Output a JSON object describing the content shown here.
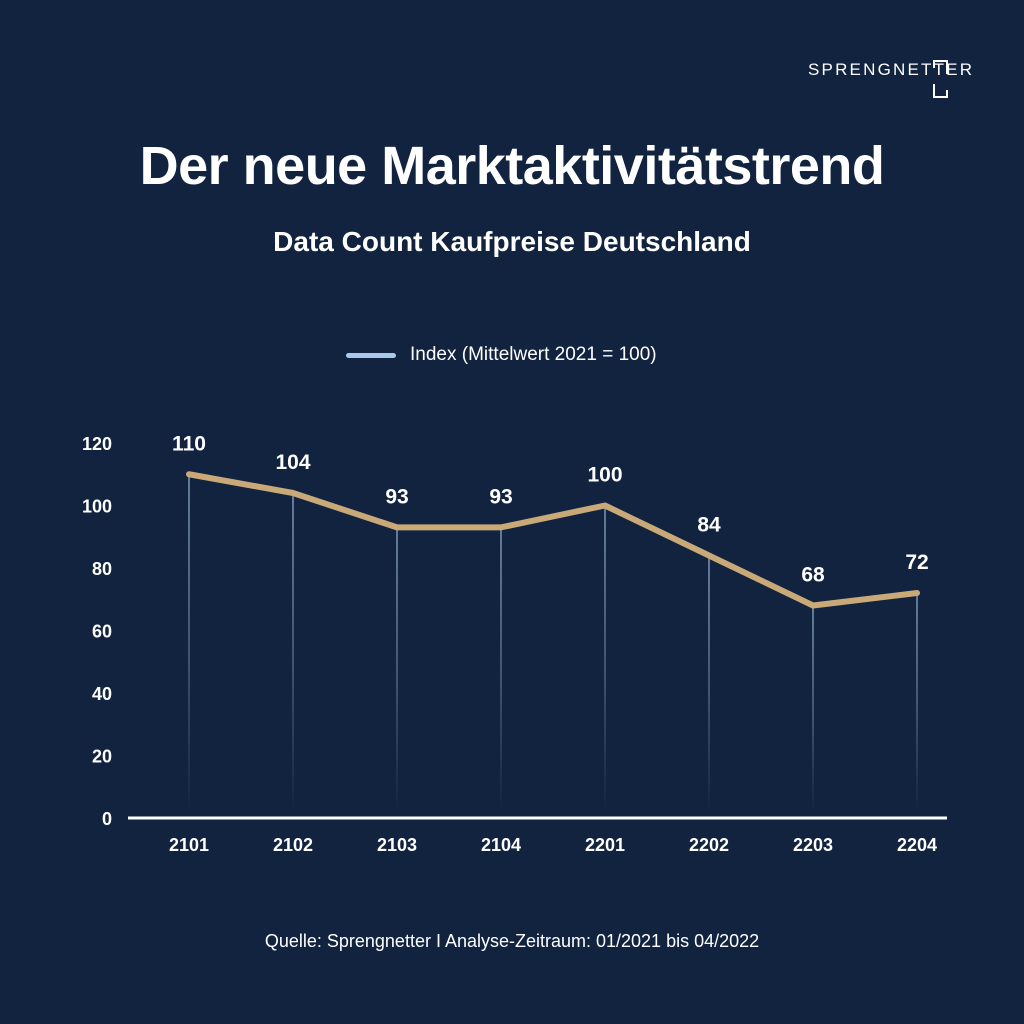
{
  "brand": {
    "name": "SPRENGNETTER"
  },
  "header": {
    "title": "Der neue Marktaktivitätstrend",
    "subtitle": "Data Count Kaufpreise Deutschland"
  },
  "footer": {
    "source": "Quelle: Sprengnetter I Analyse-Zeitraum: 01/2021 bis 04/2022"
  },
  "colors": {
    "background": "#11233f",
    "line": "#c9a978",
    "legend_swatch": "#a9c9ec",
    "drop_line": "#7f98b8",
    "text": "#ffffff"
  },
  "chart_data": {
    "type": "line",
    "title": "Der neue Marktaktivitätstrend",
    "subtitle": "Data Count Kaufpreise Deutschland",
    "xlabel": "",
    "ylabel": "",
    "categories": [
      "2101",
      "2102",
      "2103",
      "2104",
      "2201",
      "2202",
      "2203",
      "2204"
    ],
    "series": [
      {
        "name": "Index (Mittelwert 2021 = 100)",
        "values": [
          110,
          104,
          93,
          93,
          100,
          84,
          68,
          72
        ],
        "data_labels": [
          "110",
          "104",
          "93",
          "93",
          "100",
          "84",
          "68",
          "72"
        ]
      }
    ],
    "ylim": [
      0,
      120
    ],
    "yticks": [
      0,
      20,
      40,
      60,
      80,
      100,
      120
    ],
    "ytick_labels": [
      "0",
      "20",
      "40",
      "60",
      "80",
      "100",
      "120"
    ],
    "grid": false,
    "drop_lines": true,
    "legend": {
      "position": "top-center",
      "entries": [
        "Index (Mittelwert 2021 = 100)"
      ]
    }
  }
}
